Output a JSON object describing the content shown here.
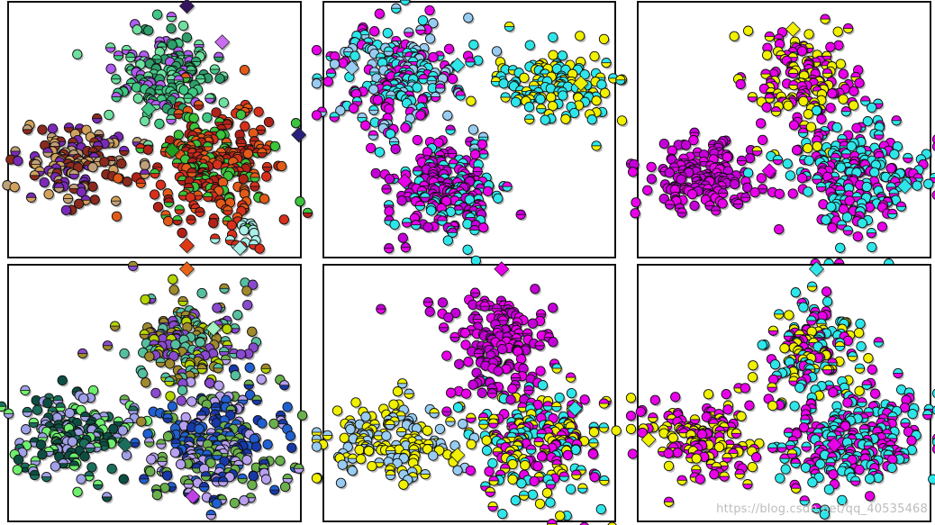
{
  "watermark": "https://blog.csdn.net/qq_40535468",
  "chart_data": [
    {
      "type": "scatter",
      "panel": "top-left",
      "marker": "circle",
      "legend": "none",
      "grid": false,
      "clusters": [
        {
          "label": "lime green cluster",
          "center": [
            0.53,
            0.3
          ],
          "spread": [
            0.095,
            0.095
          ],
          "n": 150,
          "colors": [
            "#3fc884",
            "#2e9e6a",
            "#6fe0a0",
            "#b15cf0"
          ]
        },
        {
          "label": "orange cluster",
          "center": [
            0.24,
            0.62
          ],
          "spread": [
            0.105,
            0.075
          ],
          "n": 130,
          "colors": [
            "#d2a25c",
            "#8b2a1e",
            "#c0a07a",
            "#7b2ab8"
          ]
        },
        {
          "label": "red cluster",
          "center": [
            0.7,
            0.65
          ],
          "spread": [
            0.11,
            0.12
          ],
          "n": 240,
          "colors": [
            "#d8301c",
            "#b22218",
            "#e35a18",
            "#3cc43c"
          ]
        },
        {
          "label": "cyan tail",
          "center": [
            0.82,
            0.9
          ],
          "spread": [
            0.05,
            0.05
          ],
          "n": 20,
          "colors": [
            "#a8f0e8",
            "#d8301c"
          ]
        }
      ],
      "diamonds": [
        [
          0.61,
          0.02,
          "#35155e"
        ],
        [
          0.73,
          0.16,
          "#c86cf0"
        ],
        [
          0.99,
          0.52,
          "#28207a"
        ],
        [
          0.48,
          0.42,
          "#3fc884"
        ],
        [
          0.56,
          0.58,
          "#1fa01f"
        ],
        [
          0.79,
          0.96,
          "#a8f0e8"
        ],
        [
          0.61,
          0.95,
          "#e03a12"
        ]
      ]
    },
    {
      "type": "scatter",
      "panel": "top-middle",
      "marker": "circle",
      "legend": "none",
      "grid": false,
      "clusters": [
        {
          "label": "cyan cluster",
          "center": [
            0.26,
            0.3
          ],
          "spread": [
            0.13,
            0.12
          ],
          "n": 230,
          "colors": [
            "#2ee6ea",
            "#98ccf2",
            "#e800e8"
          ]
        },
        {
          "label": "yellow cluster",
          "center": [
            0.8,
            0.32
          ],
          "spread": [
            0.1,
            0.075
          ],
          "n": 130,
          "colors": [
            "#f0f000",
            "#2ee6ea"
          ]
        },
        {
          "label": "magenta cluster",
          "center": [
            0.42,
            0.74
          ],
          "spread": [
            0.085,
            0.09
          ],
          "n": 200,
          "colors": [
            "#e800e8",
            "#c400d8",
            "#2ee6ea"
          ]
        }
      ],
      "diamonds": [
        [
          0.1,
          0.26,
          "#98ccf2"
        ],
        [
          0.46,
          0.25,
          "#2ee6ea"
        ],
        [
          0.88,
          0.32,
          "#f0f000"
        ],
        [
          0.28,
          0.7,
          "#e800e8"
        ]
      ]
    },
    {
      "type": "scatter",
      "panel": "top-right",
      "marker": "circle",
      "legend": "none",
      "grid": false,
      "clusters": [
        {
          "label": "yellow-magenta cluster",
          "center": [
            0.56,
            0.3
          ],
          "spread": [
            0.09,
            0.1
          ],
          "n": 150,
          "colors": [
            "#f0f000",
            "#e800e8"
          ]
        },
        {
          "label": "magenta cluster",
          "center": [
            0.22,
            0.68
          ],
          "spread": [
            0.1,
            0.075
          ],
          "n": 150,
          "colors": [
            "#e800e8",
            "#c400d8"
          ]
        },
        {
          "label": "cyan-magenta cluster",
          "center": [
            0.74,
            0.66
          ],
          "spread": [
            0.12,
            0.13
          ],
          "n": 230,
          "colors": [
            "#2ee6ea",
            "#e800e8"
          ]
        }
      ],
      "diamonds": [
        [
          0.53,
          0.11,
          "#f0f000"
        ],
        [
          0.45,
          0.66,
          "#e800e8"
        ],
        [
          0.91,
          0.72,
          "#2ee6ea"
        ]
      ]
    },
    {
      "type": "scatter",
      "panel": "bottom-left",
      "marker": "circle",
      "legend": "none",
      "grid": false,
      "clusters": [
        {
          "label": "olive cluster",
          "center": [
            0.6,
            0.32
          ],
          "spread": [
            0.095,
            0.1
          ],
          "n": 160,
          "colors": [
            "#b6d400",
            "#a08a2e",
            "#55c0a0",
            "#8a4ad0"
          ]
        },
        {
          "label": "teal cluster",
          "center": [
            0.22,
            0.66
          ],
          "spread": [
            0.11,
            0.08
          ],
          "n": 150,
          "colors": [
            "#1a6e5c",
            "#0c4f42",
            "#a0a0e8",
            "#6ef06e"
          ]
        },
        {
          "label": "lavender-blue cluster",
          "center": [
            0.72,
            0.7
          ],
          "spread": [
            0.12,
            0.12
          ],
          "n": 240,
          "colors": [
            "#b8a0f0",
            "#2060d0",
            "#1838a8",
            "#6ab04c"
          ]
        }
      ],
      "diamonds": [
        [
          0.61,
          0.02,
          "#e86418"
        ],
        [
          0.7,
          0.25,
          "#a0f0c0"
        ],
        [
          0.4,
          0.7,
          "#1a6e5c"
        ],
        [
          0.63,
          0.9,
          "#c040e8"
        ]
      ]
    },
    {
      "type": "scatter",
      "panel": "bottom-middle",
      "marker": "circle",
      "legend": "none",
      "grid": false,
      "clusters": [
        {
          "label": "magenta cluster",
          "center": [
            0.6,
            0.3
          ],
          "spread": [
            0.09,
            0.1
          ],
          "n": 150,
          "colors": [
            "#e800e8",
            "#c400d8"
          ]
        },
        {
          "label": "blue-yellow cluster",
          "center": [
            0.24,
            0.68
          ],
          "spread": [
            0.12,
            0.075
          ],
          "n": 150,
          "colors": [
            "#98ccf2",
            "#f0f000"
          ]
        },
        {
          "label": "cyan-yellow cluster",
          "center": [
            0.74,
            0.68
          ],
          "spread": [
            0.12,
            0.12
          ],
          "n": 230,
          "colors": [
            "#2ee6ea",
            "#f0f000",
            "#e800e8"
          ]
        }
      ],
      "diamonds": [
        [
          0.61,
          0.02,
          "#e800e8"
        ],
        [
          0.46,
          0.74,
          "#f0f000"
        ],
        [
          0.86,
          0.56,
          "#2ee6ea"
        ]
      ]
    },
    {
      "type": "scatter",
      "panel": "bottom-right",
      "marker": "circle",
      "legend": "none",
      "grid": false,
      "clusters": [
        {
          "label": "cyan-magenta top cluster",
          "center": [
            0.6,
            0.32
          ],
          "spread": [
            0.085,
            0.1
          ],
          "n": 150,
          "colors": [
            "#e800e8",
            "#2ee6ea",
            "#f0f000"
          ]
        },
        {
          "label": "yellow-magenta cluster",
          "center": [
            0.22,
            0.68
          ],
          "spread": [
            0.11,
            0.075
          ],
          "n": 150,
          "colors": [
            "#f0f000",
            "#e800e8"
          ]
        },
        {
          "label": "magenta-cyan cluster",
          "center": [
            0.74,
            0.68
          ],
          "spread": [
            0.12,
            0.12
          ],
          "n": 230,
          "colors": [
            "#e800e8",
            "#2ee6ea"
          ]
        }
      ],
      "diamonds": [
        [
          0.61,
          0.02,
          "#2ee6ea"
        ],
        [
          0.04,
          0.68,
          "#f0f000"
        ],
        [
          0.67,
          0.7,
          "#e800e8"
        ]
      ]
    }
  ]
}
